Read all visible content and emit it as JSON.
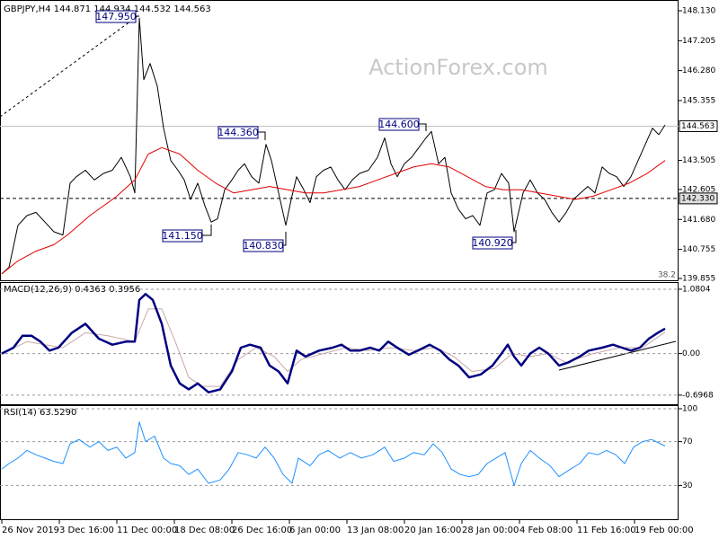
{
  "chart_data": [
    {
      "type": "line",
      "title": "GBPJPY,H4 144.871 144.934 144.532 144.563",
      "watermark": "ActionForex.com",
      "xlim": [
        0,
        755
      ],
      "ylim": [
        139.772,
        148.352
      ],
      "grid": false,
      "yticks": [
        {
          "value": 148.13,
          "label": "148.130"
        },
        147.205,
        {
          "value": 146.28,
          "label": "146.280"
        },
        145.355,
        143.505,
        142.605,
        {
          "value": 141.68,
          "label": "141.680"
        },
        140.755,
        139.855
      ],
      "levels": [
        {
          "value": 144.563,
          "label": "144.563",
          "color": "#c0c0c0",
          "dashed": false
        },
        {
          "value": 142.33,
          "label": "142.330",
          "color": "#000000",
          "dashed": true
        }
      ],
      "annotations": [
        {
          "value": 147.95,
          "label": "147.950"
        },
        {
          "value": 144.36,
          "label": "144.360"
        },
        {
          "value": 141.15,
          "label": "141.150"
        },
        {
          "value": 140.83,
          "label": "140.830"
        },
        {
          "value": 144.6,
          "label": "144.600"
        },
        {
          "value": 140.92,
          "label": "140.920"
        }
      ],
      "note": "38.2",
      "series": [
        {
          "color": "#000000",
          "width": 1,
          "x": [
            2,
            10,
            20,
            30,
            40,
            50,
            60,
            70,
            78,
            85,
            95,
            105,
            115,
            125,
            135,
            145,
            150,
            155,
            160,
            167,
            175,
            182,
            190,
            198,
            205,
            212,
            220,
            228,
            235,
            242,
            250,
            258,
            265,
            272,
            280,
            288,
            296,
            302,
            310,
            318,
            324,
            330,
            338,
            345,
            352,
            360,
            368,
            376,
            384,
            392,
            400,
            410,
            420,
            428,
            435,
            442,
            450,
            458,
            466,
            474,
            480,
            488,
            495,
            502,
            510,
            518,
            526,
            534,
            542,
            550,
            558,
            566,
            572,
            577,
            582,
            590,
            598,
            606,
            614,
            622,
            630,
            638,
            646,
            654,
            662,
            670,
            678,
            686,
            694,
            702,
            710,
            718,
            726,
            733,
            740
          ],
          "values": [
            140.0,
            140.2,
            141.5,
            141.8,
            141.9,
            141.6,
            141.3,
            141.2,
            142.8,
            143.0,
            143.2,
            142.9,
            143.1,
            143.2,
            143.6,
            143.0,
            142.5,
            147.9,
            146.0,
            146.5,
            145.8,
            144.5,
            143.5,
            143.2,
            142.9,
            142.3,
            142.8,
            142.1,
            141.6,
            141.7,
            142.6,
            142.9,
            143.2,
            143.4,
            143.0,
            142.8,
            144.0,
            143.5,
            142.5,
            141.5,
            142.3,
            143.0,
            142.6,
            142.2,
            143.0,
            143.2,
            143.3,
            142.9,
            142.6,
            142.9,
            143.1,
            143.2,
            143.6,
            144.2,
            143.4,
            143.0,
            143.4,
            143.6,
            143.9,
            144.2,
            144.4,
            143.4,
            143.6,
            142.5,
            142.0,
            141.7,
            141.8,
            141.5,
            142.5,
            142.6,
            143.1,
            142.8,
            141.3,
            141.9,
            142.5,
            142.9,
            142.5,
            142.3,
            141.9,
            141.6,
            141.9,
            142.3,
            142.5,
            142.7,
            142.5,
            143.3,
            143.1,
            143.0,
            142.7,
            143.0,
            143.5,
            144.0,
            144.5,
            144.3,
            144.6
          ]
        },
        {
          "color": "#e00000",
          "width": 1,
          "x": [
            2,
            20,
            40,
            60,
            75,
            100,
            130,
            150,
            165,
            180,
            200,
            220,
            240,
            260,
            280,
            300,
            320,
            340,
            360,
            380,
            400,
            420,
            440,
            460,
            480,
            500,
            520,
            540,
            560,
            580,
            600,
            620,
            640,
            660,
            680,
            700,
            720,
            740
          ],
          "values": [
            140.0,
            140.4,
            140.7,
            140.9,
            141.2,
            141.8,
            142.4,
            142.9,
            143.7,
            143.9,
            143.7,
            143.2,
            142.8,
            142.5,
            142.6,
            142.7,
            142.6,
            142.5,
            142.5,
            142.6,
            142.7,
            142.9,
            143.1,
            143.3,
            143.4,
            143.3,
            143.0,
            142.7,
            142.6,
            142.6,
            142.5,
            142.4,
            142.3,
            142.4,
            142.6,
            142.8,
            143.1,
            143.5
          ]
        }
      ]
    },
    {
      "type": "line",
      "title": "MACD(12,26,9) 0.4363 0.3956",
      "xlim": [
        0,
        755
      ],
      "ylim": [
        -0.85,
        1.17
      ],
      "grid": true,
      "yticks": [
        1.0804,
        {
          "value": 0,
          "label": "0.00"
        },
        -0.6968
      ],
      "series": [
        {
          "color": "#c8a8a8",
          "width": 1,
          "x": [
            2,
            30,
            50,
            70,
            95,
            120,
            150,
            165,
            180,
            195,
            210,
            225,
            245,
            265,
            285,
            305,
            320,
            335,
            360,
            385,
            410,
            435,
            460,
            485,
            505,
            525,
            550,
            570,
            590,
            610,
            630,
            660,
            690,
            715,
            740
          ],
          "values": [
            0.0,
            0.2,
            0.15,
            0.1,
            0.35,
            0.3,
            0.2,
            0.75,
            0.75,
            0.2,
            -0.4,
            -0.55,
            -0.55,
            -0.1,
            0.1,
            -0.05,
            -0.3,
            -0.1,
            0.0,
            0.1,
            0.05,
            0.1,
            0.05,
            0.1,
            -0.05,
            -0.3,
            -0.25,
            0.0,
            -0.05,
            0.0,
            -0.15,
            0.0,
            0.1,
            0.1,
            0.36
          ]
        },
        {
          "color": "#000080",
          "width": 2.5,
          "x": [
            2,
            15,
            25,
            35,
            45,
            55,
            65,
            80,
            95,
            110,
            125,
            140,
            150,
            155,
            162,
            170,
            180,
            190,
            200,
            210,
            220,
            232,
            245,
            258,
            268,
            278,
            290,
            300,
            310,
            320,
            330,
            340,
            355,
            370,
            380,
            390,
            400,
            412,
            422,
            432,
            442,
            455,
            465,
            478,
            490,
            500,
            510,
            522,
            535,
            548,
            558,
            565,
            572,
            580,
            590,
            600,
            610,
            622,
            632,
            645,
            655,
            670,
            682,
            692,
            702,
            712,
            722,
            732,
            740
          ],
          "values": [
            0.0,
            0.1,
            0.3,
            0.3,
            0.2,
            0.05,
            0.1,
            0.35,
            0.5,
            0.25,
            0.15,
            0.2,
            0.2,
            0.9,
            1.0,
            0.9,
            0.5,
            -0.2,
            -0.5,
            -0.6,
            -0.5,
            -0.65,
            -0.6,
            -0.3,
            0.1,
            0.15,
            0.1,
            -0.2,
            -0.3,
            -0.5,
            0.05,
            -0.05,
            0.05,
            0.1,
            0.15,
            0.05,
            0.05,
            0.1,
            0.05,
            0.2,
            0.1,
            -0.02,
            0.05,
            0.15,
            0.05,
            -0.1,
            -0.2,
            -0.4,
            -0.35,
            -0.2,
            0.0,
            0.15,
            -0.05,
            -0.2,
            0.0,
            0.1,
            0.0,
            -0.2,
            -0.15,
            -0.05,
            0.05,
            0.1,
            0.15,
            0.1,
            0.05,
            0.1,
            0.25,
            0.35,
            0.42
          ]
        }
      ]
    },
    {
      "type": "line",
      "title": "RSI(14) 63.5290",
      "xlim": [
        0,
        755
      ],
      "ylim": [
        0,
        100
      ],
      "grid": true,
      "yticks": [
        100,
        70,
        30
      ],
      "xticks": [
        {
          "value": 2,
          "label": "26 Nov 2019"
        },
        {
          "value": 66,
          "label": "3 Dec 16:00"
        },
        {
          "value": 130,
          "label": "11 Dec 00:00"
        },
        {
          "value": 194,
          "label": "18 Dec 08:00"
        },
        {
          "value": 258,
          "label": "26 Dec 16:00"
        },
        {
          "value": 322,
          "label": "6 Jan 00:00"
        },
        {
          "value": 386,
          "label": "13 Jan 08:00"
        },
        {
          "value": 450,
          "label": "20 Jan 16:00"
        },
        {
          "value": 514,
          "label": "28 Jan 00:00"
        },
        {
          "value": 578,
          "label": "4 Feb 08:00"
        },
        {
          "value": 642,
          "label": "11 Feb 16:00"
        },
        {
          "value": 706,
          "label": "19 Feb 00:00"
        }
      ],
      "series": [
        {
          "color": "#1e90ff",
          "width": 1,
          "x": [
            2,
            10,
            20,
            30,
            40,
            50,
            60,
            70,
            78,
            88,
            100,
            110,
            120,
            130,
            140,
            150,
            155,
            162,
            172,
            182,
            190,
            200,
            210,
            220,
            232,
            245,
            255,
            265,
            275,
            285,
            295,
            305,
            315,
            325,
            332,
            345,
            355,
            365,
            378,
            390,
            402,
            415,
            428,
            438,
            450,
            460,
            472,
            482,
            492,
            502,
            512,
            522,
            532,
            542,
            552,
            562,
            572,
            580,
            590,
            600,
            612,
            622,
            635,
            645,
            655,
            665,
            675,
            685,
            695,
            705,
            715,
            725,
            735,
            740
          ],
          "values": [
            45,
            50,
            55,
            62,
            58,
            55,
            52,
            50,
            68,
            72,
            65,
            70,
            62,
            65,
            55,
            60,
            88,
            70,
            75,
            55,
            50,
            48,
            40,
            45,
            32,
            35,
            45,
            60,
            58,
            55,
            65,
            55,
            40,
            32,
            55,
            48,
            58,
            62,
            55,
            60,
            55,
            58,
            65,
            52,
            55,
            60,
            58,
            68,
            60,
            45,
            40,
            38,
            40,
            50,
            55,
            60,
            30,
            50,
            62,
            55,
            48,
            38,
            45,
            50,
            60,
            58,
            62,
            58,
            50,
            65,
            70,
            72,
            68,
            66
          ]
        }
      ]
    }
  ]
}
